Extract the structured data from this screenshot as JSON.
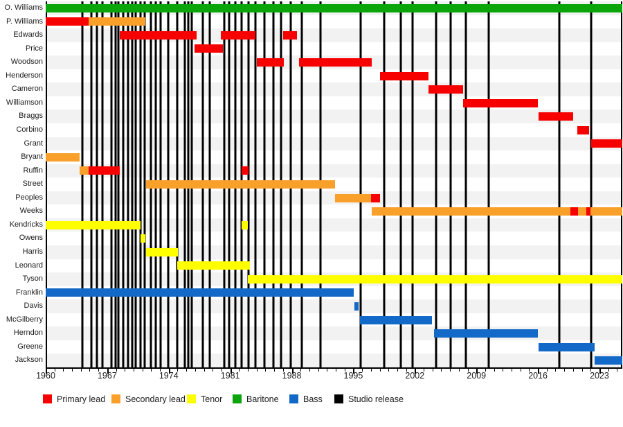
{
  "chart_data": {
    "type": "timeline",
    "x_axis": {
      "start": 1960,
      "end": 2025.6,
      "labeled_ticks": [
        1960,
        1967,
        1974,
        1981,
        1988,
        1995,
        2002,
        2009,
        2016,
        2023
      ],
      "minor_tick_every": 1
    },
    "legend": [
      {
        "role": "primary",
        "label": "Primary lead",
        "color": "#f70000"
      },
      {
        "role": "secondary",
        "label": "Secondary lead",
        "color": "#f9a02b"
      },
      {
        "role": "tenor",
        "label": "Tenor",
        "color": "#ffff00"
      },
      {
        "role": "baritone",
        "label": "Baritone",
        "color": "#0aa50a"
      },
      {
        "role": "bass",
        "label": "Bass",
        "color": "#1269c7"
      },
      {
        "role": "release",
        "label": "Studio release",
        "color": "#000000"
      }
    ],
    "studio_releases": [
      1964.2,
      1965.2,
      1965.85,
      1966.45,
      1967.5,
      1967.95,
      1968.3,
      1968.85,
      1969.35,
      1969.85,
      1970.25,
      1970.8,
      1971.3,
      1972.0,
      1972.5,
      1973.05,
      1973.95,
      1975.0,
      1975.85,
      1976.2,
      1976.6,
      1977.85,
      1978.7,
      1980.3,
      1980.9,
      1981.6,
      1982.3,
      1983.1,
      1983.9,
      1984.9,
      1985.9,
      1986.8,
      1987.9,
      1989.1,
      1991.3,
      1995.8,
      1998.5,
      2000.4,
      2001.7,
      2004.45,
      2006.05,
      2007.8,
      2010.4,
      2018.4,
      2022.05
    ],
    "members": [
      {
        "name": "O. Williams",
        "segments": [
          {
            "role": "baritone",
            "start": 1960,
            "end": 2025.6
          }
        ]
      },
      {
        "name": "P. Williams",
        "segments": [
          {
            "role": "primary",
            "start": 1960,
            "end": 1964.9
          },
          {
            "role": "secondary",
            "start": 1964.9,
            "end": 1971.35
          }
        ]
      },
      {
        "name": "Edwards",
        "segments": [
          {
            "role": "primary",
            "start": 1968.45,
            "end": 1977.15
          },
          {
            "role": "primary",
            "start": 1979.95,
            "end": 1983.85
          },
          {
            "role": "primary",
            "start": 1987.0,
            "end": 1988.6
          }
        ]
      },
      {
        "name": "Price",
        "segments": [
          {
            "role": "primary",
            "start": 1976.95,
            "end": 1980.15
          }
        ]
      },
      {
        "name": "Woodson",
        "segments": [
          {
            "role": "primary",
            "start": 1984.0,
            "end": 1987.1
          },
          {
            "role": "primary",
            "start": 1988.85,
            "end": 1997.1
          }
        ]
      },
      {
        "name": "Henderson",
        "segments": [
          {
            "role": "primary",
            "start": 1998.0,
            "end": 2003.55
          }
        ]
      },
      {
        "name": "Cameron",
        "segments": [
          {
            "role": "primary",
            "start": 2003.55,
            "end": 2007.5
          }
        ]
      },
      {
        "name": "Williamson",
        "segments": [
          {
            "role": "primary",
            "start": 2007.5,
            "end": 2016.0
          }
        ]
      },
      {
        "name": "Braggs",
        "segments": [
          {
            "role": "primary",
            "start": 2016.05,
            "end": 2020.0
          }
        ]
      },
      {
        "name": "Corbino",
        "segments": [
          {
            "role": "primary",
            "start": 2020.5,
            "end": 2021.8
          }
        ]
      },
      {
        "name": "Grant",
        "segments": [
          {
            "role": "primary",
            "start": 2022.05,
            "end": 2025.6
          }
        ]
      },
      {
        "name": "Bryant",
        "segments": [
          {
            "role": "secondary",
            "start": 1960,
            "end": 1963.85
          }
        ]
      },
      {
        "name": "Ruffin",
        "segments": [
          {
            "role": "secondary",
            "start": 1963.85,
            "end": 1964.9
          },
          {
            "role": "primary",
            "start": 1964.9,
            "end": 1968.45
          },
          {
            "role": "primary",
            "start": 1982.3,
            "end": 1983.05
          }
        ]
      },
      {
        "name": "Street",
        "segments": [
          {
            "role": "secondary",
            "start": 1971.4,
            "end": 1992.95
          }
        ]
      },
      {
        "name": "Peoples",
        "segments": [
          {
            "role": "secondary",
            "start": 1992.95,
            "end": 1997.05
          },
          {
            "role": "primary",
            "start": 1997.05,
            "end": 1998.0
          }
        ]
      },
      {
        "name": "Weeks",
        "segments": [
          {
            "role": "secondary",
            "start": 1997.1,
            "end": 2025.6
          },
          {
            "role": "primary",
            "start": 2019.7,
            "end": 2020.55
          },
          {
            "role": "primary",
            "start": 2021.5,
            "end": 2022.0
          }
        ]
      },
      {
        "name": "Kendricks",
        "segments": [
          {
            "role": "tenor",
            "start": 1960,
            "end": 1970.8
          },
          {
            "role": "tenor",
            "start": 1982.25,
            "end": 1983.0
          }
        ]
      },
      {
        "name": "Owens",
        "segments": [
          {
            "role": "tenor",
            "start": 1970.8,
            "end": 1971.35
          }
        ]
      },
      {
        "name": "Harris",
        "segments": [
          {
            "role": "tenor",
            "start": 1971.4,
            "end": 1975.05
          }
        ]
      },
      {
        "name": "Leonard",
        "segments": [
          {
            "role": "tenor",
            "start": 1974.95,
            "end": 1983.2
          }
        ]
      },
      {
        "name": "Tyson",
        "segments": [
          {
            "role": "tenor",
            "start": 1983.0,
            "end": 2025.6
          }
        ]
      },
      {
        "name": "Franklin",
        "segments": [
          {
            "role": "bass",
            "start": 1960,
            "end": 1995.05
          }
        ]
      },
      {
        "name": "Davis",
        "segments": [
          {
            "role": "bass",
            "start": 1995.1,
            "end": 1995.6
          }
        ]
      },
      {
        "name": "McGilberry",
        "segments": [
          {
            "role": "bass",
            "start": 1995.75,
            "end": 2003.95
          }
        ]
      },
      {
        "name": "Herndon",
        "segments": [
          {
            "role": "bass",
            "start": 2004.2,
            "end": 2016.0
          }
        ]
      },
      {
        "name": "Greene",
        "segments": [
          {
            "role": "bass",
            "start": 2016.05,
            "end": 2022.45
          }
        ]
      },
      {
        "name": "Jackson",
        "segments": [
          {
            "role": "bass",
            "start": 2022.45,
            "end": 2025.6
          }
        ]
      }
    ],
    "layout_hints": {
      "row_stripe_color": "#f2f2f2",
      "lines_behind_bars": true,
      "legend_position": "bottom"
    }
  }
}
